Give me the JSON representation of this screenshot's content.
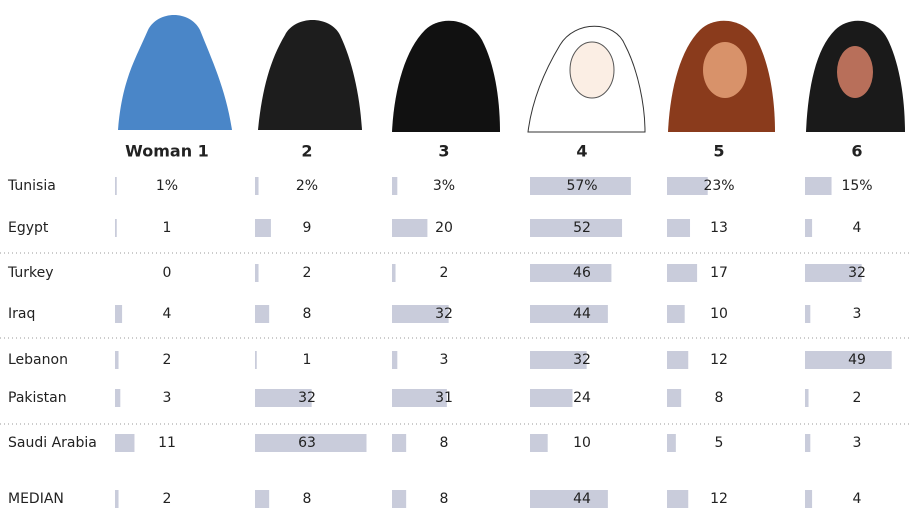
{
  "chart_data": {
    "type": "table-bar",
    "columns": [
      "Woman 1",
      "2",
      "3",
      "4",
      "5",
      "6"
    ],
    "rows": [
      {
        "name": "Tunisia",
        "values": [
          1,
          2,
          3,
          57,
          23,
          15
        ],
        "value_labels": [
          "1%",
          "2%",
          "3%",
          "57%",
          "23%",
          "15%"
        ]
      },
      {
        "name": "Egypt",
        "values": [
          1,
          9,
          20,
          52,
          13,
          4
        ]
      },
      {
        "name": "Turkey",
        "values": [
          0,
          2,
          2,
          46,
          17,
          32
        ]
      },
      {
        "name": "Iraq",
        "values": [
          4,
          8,
          32,
          44,
          10,
          3
        ]
      },
      {
        "name": "Lebanon",
        "values": [
          2,
          1,
          3,
          32,
          12,
          49
        ]
      },
      {
        "name": "Pakistan",
        "values": [
          3,
          32,
          31,
          24,
          8,
          2
        ]
      },
      {
        "name": "Saudi Arabia",
        "values": [
          11,
          63,
          8,
          10,
          5,
          3
        ]
      },
      {
        "name": "MEDIAN",
        "values": [
          2,
          8,
          8,
          44,
          12,
          4
        ]
      }
    ],
    "color": "#c9ccdb"
  }
}
